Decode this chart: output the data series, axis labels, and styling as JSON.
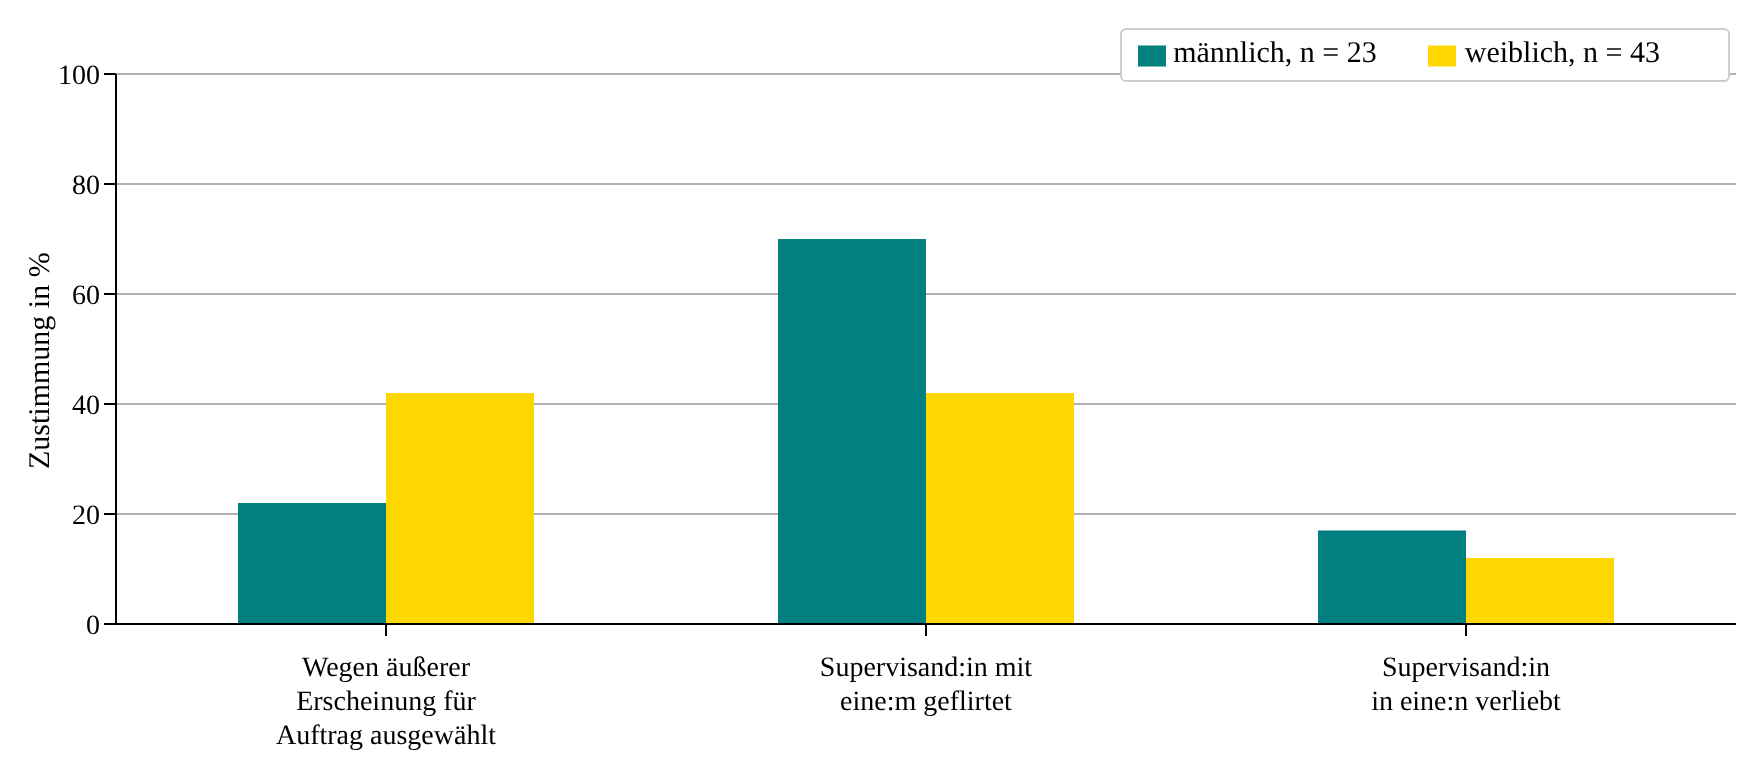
{
  "chart_data": {
    "type": "bar",
    "ylabel": "Zustimmung in %",
    "categories": [
      "Wegen äußerer\nErscheinung für\nAuftrag ausgewählt",
      "Supervisand:in mit\neine:m geflirtet",
      "Supervisand:in\nin eine:n verliebt"
    ],
    "series": [
      {
        "name": "männlich, n = 23",
        "color": "#008080",
        "values": [
          22,
          70,
          17
        ]
      },
      {
        "name": "weiblich, n = 43",
        "color": "#ffd700",
        "values": [
          42,
          42,
          12
        ]
      }
    ],
    "ylim": [
      0,
      100
    ],
    "yticks": [
      0,
      20,
      40,
      60,
      80,
      100
    ],
    "grid": "y",
    "legend": "top right"
  }
}
